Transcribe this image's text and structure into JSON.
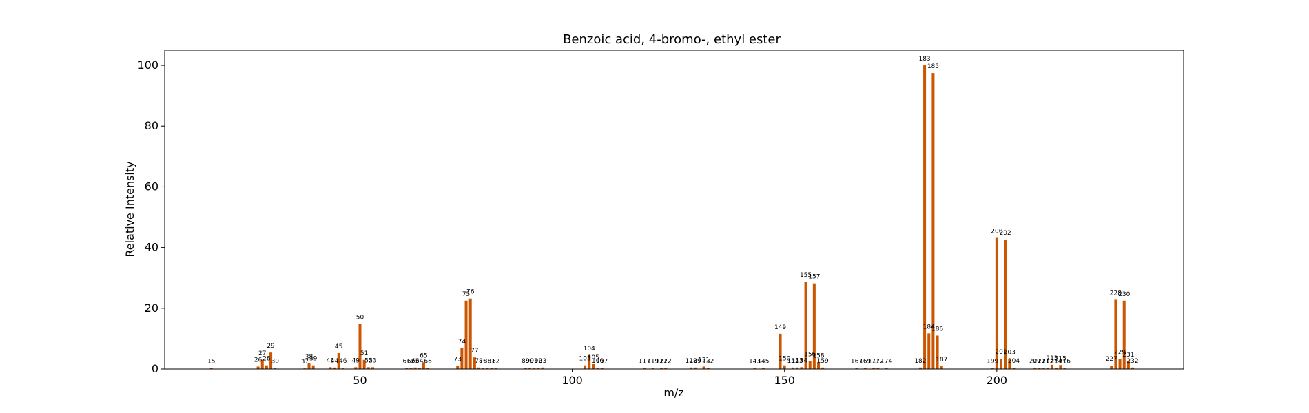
{
  "chart_data": {
    "type": "bar",
    "title": "Benzoic acid, 4-bromo-, ethyl ester",
    "xlabel": "m/z",
    "ylabel": "Relative Intensity",
    "xlim": [
      4,
      244
    ],
    "ylim": [
      0,
      105
    ],
    "xticks": [
      50,
      100,
      150,
      200
    ],
    "yticks": [
      0,
      20,
      40,
      60,
      80,
      100
    ],
    "grid": false,
    "bar_color": "#cc5500",
    "x": [
      15,
      26,
      27,
      28,
      29,
      30,
      37,
      38,
      39,
      43,
      44,
      45,
      46,
      49,
      50,
      51,
      52,
      53,
      61,
      62,
      63,
      64,
      65,
      66,
      73,
      74,
      75,
      76,
      77,
      78,
      79,
      80,
      81,
      82,
      89,
      90,
      91,
      92,
      93,
      103,
      104,
      105,
      106,
      107,
      117,
      119,
      121,
      122,
      128,
      129,
      131,
      132,
      143,
      145,
      149,
      150,
      152,
      153,
      154,
      155,
      156,
      157,
      158,
      159,
      167,
      169,
      171,
      172,
      174,
      182,
      183,
      184,
      185,
      186,
      187,
      199,
      200,
      201,
      202,
      203,
      204,
      209,
      210,
      211,
      212,
      213,
      214,
      215,
      216,
      227,
      228,
      229,
      230,
      231,
      232
    ],
    "y": [
      0.3,
      0.8,
      3.0,
      1.2,
      5.4,
      0.3,
      0.2,
      1.8,
      1.2,
      0.6,
      0.5,
      5.2,
      0.4,
      0.6,
      14.8,
      3.0,
      0.6,
      0.6,
      0.3,
      0.3,
      0.5,
      0.4,
      2.2,
      0.3,
      1.0,
      6.8,
      22.5,
      23.2,
      3.8,
      0.5,
      0.3,
      0.3,
      0.3,
      0.3,
      0.4,
      0.4,
      0.4,
      0.4,
      0.5,
      1.2,
      4.5,
      1.6,
      0.4,
      0.3,
      0.3,
      0.3,
      0.3,
      0.3,
      0.5,
      0.5,
      0.8,
      0.3,
      0.3,
      0.3,
      11.6,
      1.2,
      0.5,
      0.5,
      0.6,
      28.8,
      2.6,
      28.2,
      2.2,
      0.5,
      0.3,
      0.3,
      0.3,
      0.3,
      0.3,
      0.5,
      100,
      11.7,
      97.5,
      11.0,
      0.9,
      0.3,
      43.2,
      3.4,
      42.6,
      3.3,
      0.4,
      0.3,
      0.3,
      0.3,
      0.3,
      1.4,
      0.3,
      1.3,
      0.3,
      1.1,
      22.8,
      3.3,
      22.5,
      2.5,
      0.5
    ],
    "labels": [
      "15",
      "26",
      "27",
      "28",
      "29",
      "30",
      "37",
      "38",
      "39",
      "43",
      "44",
      "45",
      "46",
      "49",
      "50",
      "51",
      "52",
      "53",
      "61",
      "62",
      "63",
      "64",
      "65",
      "66",
      "73",
      "74",
      "75",
      "76",
      "77",
      "78",
      "79",
      "80",
      "81",
      "82",
      "89",
      "90",
      "91",
      "92",
      "93",
      "103",
      "104",
      "105",
      "106",
      "107",
      "117",
      "119",
      "121",
      "122",
      "128",
      "129",
      "131",
      "132",
      "143",
      "145",
      "149",
      "150",
      "152",
      "153",
      "154",
      "155",
      "156",
      "157",
      "158",
      "159",
      "167",
      "169",
      "171",
      "172",
      "174",
      "182",
      "183",
      "184",
      "185",
      "186",
      "187",
      "199",
      "200",
      "201",
      "202",
      "203",
      "204",
      "209",
      "210",
      "211",
      "212",
      "213",
      "214",
      "215",
      "216",
      "227",
      "228",
      "229",
      "230",
      "231",
      "232"
    ]
  }
}
